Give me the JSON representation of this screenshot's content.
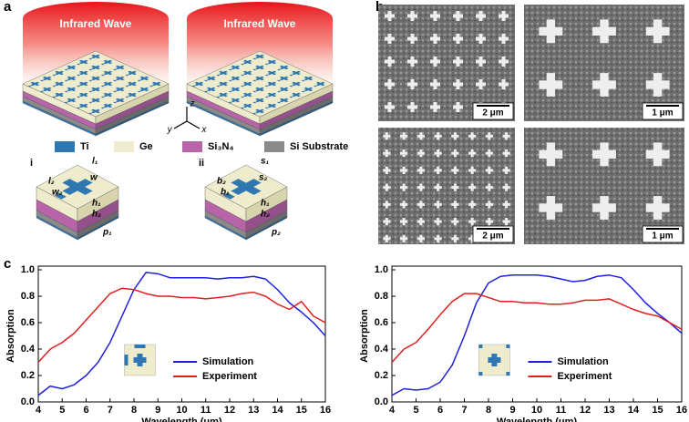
{
  "panel_labels": [
    "a",
    "b",
    "c"
  ],
  "panel_a": {
    "wave_labels": [
      "Infrared Wave",
      "Infrared Wave"
    ],
    "axes": [
      "z",
      "y",
      "x"
    ],
    "legend": [
      "Ti",
      "Ge",
      "Si₃N₄",
      "Si Substrate"
    ],
    "designs": [
      "i",
      "ii"
    ],
    "dims_i": [
      "l₁",
      "w",
      "l₂",
      "w₂",
      "h₁",
      "h₂",
      "p₁"
    ],
    "dims_ii": [
      "s₁",
      "s₂",
      "b₂",
      "b₁",
      "h₁",
      "h₂",
      "p₂"
    ]
  },
  "panel_b": {
    "scale_bars": [
      "2 μm",
      "1 μm",
      "2 μm",
      "1 μm"
    ]
  },
  "chart_data": [
    {
      "type": "line",
      "xlabel": "Wavelength (μm)",
      "ylabel": "Absorption",
      "x": [
        4,
        4.5,
        5,
        5.5,
        6,
        6.5,
        7,
        7.5,
        8,
        8.5,
        9,
        9.5,
        10,
        10.5,
        11,
        11.5,
        12,
        12.5,
        13,
        13.5,
        14,
        14.5,
        15,
        15.5,
        16
      ],
      "series": [
        {
          "name": "Simulation",
          "color": "#1f1fe0",
          "values": [
            0.05,
            0.12,
            0.1,
            0.13,
            0.2,
            0.3,
            0.45,
            0.65,
            0.85,
            0.98,
            0.97,
            0.94,
            0.94,
            0.94,
            0.94,
            0.93,
            0.94,
            0.94,
            0.95,
            0.93,
            0.85,
            0.75,
            0.68,
            0.6,
            0.5
          ]
        },
        {
          "name": "Experiment",
          "color": "#e01f1f",
          "values": [
            0.3,
            0.4,
            0.45,
            0.52,
            0.62,
            0.72,
            0.82,
            0.86,
            0.85,
            0.82,
            0.8,
            0.8,
            0.79,
            0.79,
            0.78,
            0.79,
            0.8,
            0.82,
            0.83,
            0.8,
            0.74,
            0.7,
            0.76,
            0.65,
            0.6
          ]
        }
      ],
      "xlim": [
        4,
        16
      ],
      "ylim": [
        0,
        1
      ],
      "xticks": [
        4,
        5,
        6,
        7,
        8,
        9,
        10,
        11,
        12,
        13,
        14,
        15,
        16
      ],
      "yticks": [
        {
          "value": 0,
          "label": "0.0"
        },
        0.2,
        0.4,
        0.6,
        0.8,
        {
          "value": 1,
          "label": "1.0"
        }
      ]
    },
    {
      "type": "line",
      "xlabel": "Wavelength (μm)",
      "ylabel": "Absorption",
      "x": [
        4,
        4.5,
        5,
        5.5,
        6,
        6.5,
        7,
        7.5,
        8,
        8.5,
        9,
        9.5,
        10,
        10.5,
        11,
        11.5,
        12,
        12.5,
        13,
        13.5,
        14,
        14.5,
        15,
        15.5,
        16
      ],
      "series": [
        {
          "name": "Simulation",
          "color": "#1f1fe0",
          "values": [
            0.05,
            0.1,
            0.09,
            0.1,
            0.15,
            0.28,
            0.5,
            0.75,
            0.9,
            0.95,
            0.96,
            0.96,
            0.96,
            0.95,
            0.93,
            0.91,
            0.92,
            0.95,
            0.96,
            0.94,
            0.85,
            0.75,
            0.67,
            0.6,
            0.52
          ]
        },
        {
          "name": "Experiment",
          "color": "#e01f1f",
          "values": [
            0.3,
            0.4,
            0.45,
            0.55,
            0.66,
            0.76,
            0.82,
            0.82,
            0.79,
            0.76,
            0.76,
            0.75,
            0.75,
            0.74,
            0.74,
            0.75,
            0.77,
            0.77,
            0.78,
            0.74,
            0.7,
            0.67,
            0.65,
            0.6,
            0.55
          ]
        }
      ],
      "xlim": [
        4,
        16
      ],
      "ylim": [
        0,
        1
      ],
      "xticks": [
        4,
        5,
        6,
        7,
        8,
        9,
        10,
        11,
        12,
        13,
        14,
        15,
        16
      ],
      "yticks": [
        {
          "value": 0,
          "label": "0.0"
        },
        0.2,
        0.4,
        0.6,
        0.8,
        {
          "value": 1,
          "label": "1.0"
        }
      ]
    }
  ]
}
